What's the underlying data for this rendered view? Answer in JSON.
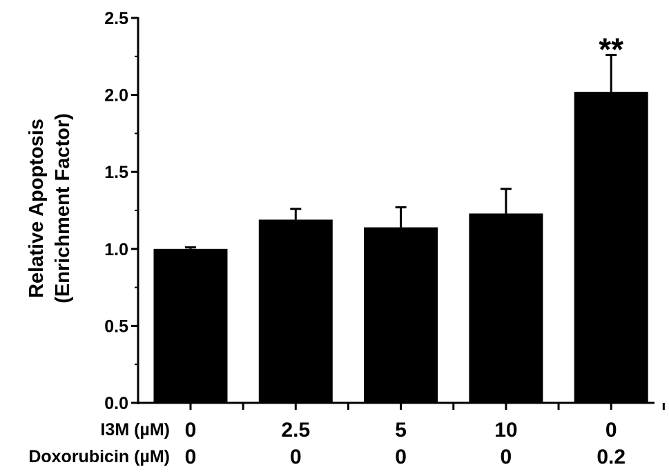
{
  "chart_data": {
    "type": "bar",
    "ylabel_lines": [
      "Relative Apoptosis",
      "(Enrichment Factor)"
    ],
    "ylim": [
      0,
      2.5
    ],
    "yticks": [
      "0.0",
      "0.5",
      "1.0",
      "1.5",
      "2.0",
      "2.5"
    ],
    "grid": false,
    "values": [
      1.0,
      1.19,
      1.14,
      1.23,
      2.02
    ],
    "errors": [
      0.01,
      0.07,
      0.13,
      0.16,
      0.24
    ],
    "bar_color": "#000000",
    "conditions": [
      {
        "label": "I3M (µM)",
        "values": [
          "0",
          "2.5",
          "5",
          "10",
          "0"
        ]
      },
      {
        "label": "Doxorubicin (µM)",
        "values": [
          "0",
          "0",
          "0",
          "0",
          "0.2"
        ]
      }
    ],
    "annotations": [
      {
        "bar_index": 4,
        "text": "**"
      }
    ]
  }
}
